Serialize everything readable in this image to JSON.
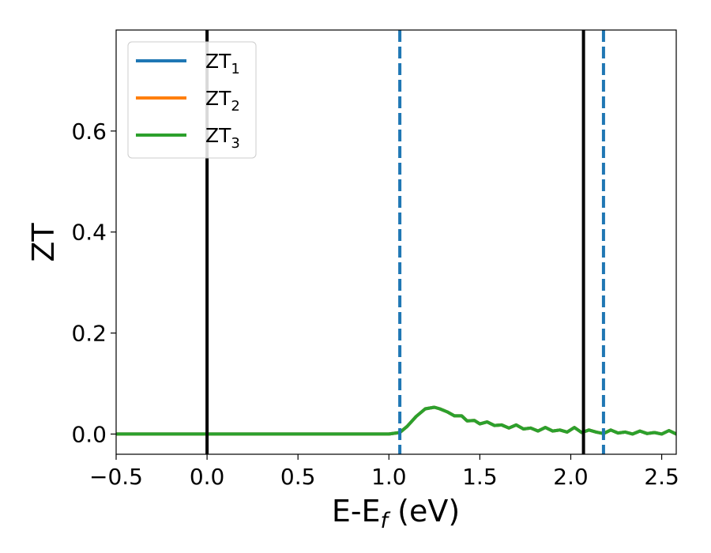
{
  "chart_data": {
    "type": "line",
    "title": "",
    "xlabel": "E-E",
    "xlabel_sub": "f",
    "xlabel_unit": " (eV)",
    "ylabel": "ZT",
    "xlim": [
      -0.5,
      2.58
    ],
    "ylim": [
      -0.04,
      0.8
    ],
    "xticks": [
      -0.5,
      0.0,
      0.5,
      1.0,
      1.5,
      2.0,
      2.5
    ],
    "xtick_labels": [
      "−0.5",
      "0.0",
      "0.5",
      "1.0",
      "1.5",
      "2.0",
      "2.5"
    ],
    "yticks": [
      0.0,
      0.2,
      0.4,
      0.6
    ],
    "ytick_labels": [
      "0.0",
      "0.2",
      "0.4",
      "0.6"
    ],
    "grid": false,
    "legend_position": "top-left",
    "vertical_lines": [
      {
        "x": 0.0,
        "style": "solid",
        "color": "#000000"
      },
      {
        "x": 2.07,
        "style": "solid",
        "color": "#000000"
      },
      {
        "x": 1.06,
        "style": "dashed",
        "color": "#1f77b4"
      },
      {
        "x": 2.18,
        "style": "dashed",
        "color": "#1f77b4"
      }
    ],
    "series": [
      {
        "name": "ZT",
        "name_sub": "1",
        "color": "#1f77b4",
        "x": [
          -0.5,
          1.0,
          1.06,
          1.1,
          1.15,
          1.2,
          1.25,
          1.28,
          1.32,
          1.36,
          1.4,
          1.43,
          1.47,
          1.5,
          1.54,
          1.58,
          1.62,
          1.66,
          1.7,
          1.74,
          1.78,
          1.82,
          1.86,
          1.9,
          1.94,
          1.98,
          2.02,
          2.06,
          2.1,
          2.14,
          2.18,
          2.22,
          2.26,
          2.3,
          2.34,
          2.38,
          2.42,
          2.46,
          2.5,
          2.54,
          2.58
        ],
        "y": [
          0.0,
          0.0,
          0.003,
          0.015,
          0.035,
          0.05,
          0.053,
          0.05,
          0.044,
          0.036,
          0.036,
          0.026,
          0.027,
          0.02,
          0.024,
          0.017,
          0.018,
          0.012,
          0.018,
          0.01,
          0.012,
          0.006,
          0.013,
          0.006,
          0.008,
          0.004,
          0.013,
          0.003,
          0.008,
          0.004,
          0.001,
          0.008,
          0.002,
          0.004,
          0.0,
          0.006,
          0.001,
          0.003,
          0.0,
          0.007,
          0.0
        ]
      },
      {
        "name": "ZT",
        "name_sub": "2",
        "color": "#ff7f0e",
        "x": [
          -0.5,
          1.0,
          1.06,
          1.1,
          1.15,
          1.2,
          1.25,
          1.28,
          1.32,
          1.36,
          1.4,
          1.43,
          1.47,
          1.5,
          1.54,
          1.58,
          1.62,
          1.66,
          1.7,
          1.74,
          1.78,
          1.82,
          1.86,
          1.9,
          1.94,
          1.98,
          2.02,
          2.06,
          2.1,
          2.14,
          2.18,
          2.22,
          2.26,
          2.3,
          2.34,
          2.38,
          2.42,
          2.46,
          2.5,
          2.54,
          2.58
        ],
        "y": [
          0.0,
          0.0,
          0.003,
          0.015,
          0.035,
          0.05,
          0.053,
          0.05,
          0.044,
          0.036,
          0.036,
          0.026,
          0.027,
          0.02,
          0.024,
          0.017,
          0.018,
          0.012,
          0.018,
          0.01,
          0.012,
          0.006,
          0.013,
          0.006,
          0.008,
          0.004,
          0.013,
          0.003,
          0.008,
          0.004,
          0.001,
          0.008,
          0.002,
          0.004,
          0.0,
          0.006,
          0.001,
          0.003,
          0.0,
          0.007,
          0.0
        ]
      },
      {
        "name": "ZT",
        "name_sub": "3",
        "color": "#2ca02c",
        "x": [
          -0.5,
          1.0,
          1.06,
          1.1,
          1.15,
          1.2,
          1.25,
          1.28,
          1.32,
          1.36,
          1.4,
          1.43,
          1.47,
          1.5,
          1.54,
          1.58,
          1.62,
          1.66,
          1.7,
          1.74,
          1.78,
          1.82,
          1.86,
          1.9,
          1.94,
          1.98,
          2.02,
          2.06,
          2.1,
          2.14,
          2.18,
          2.22,
          2.26,
          2.3,
          2.34,
          2.38,
          2.42,
          2.46,
          2.5,
          2.54,
          2.58
        ],
        "y": [
          0.0,
          0.0,
          0.003,
          0.015,
          0.035,
          0.05,
          0.053,
          0.05,
          0.044,
          0.036,
          0.036,
          0.026,
          0.027,
          0.02,
          0.024,
          0.017,
          0.018,
          0.012,
          0.018,
          0.01,
          0.012,
          0.006,
          0.013,
          0.006,
          0.008,
          0.004,
          0.013,
          0.003,
          0.008,
          0.004,
          0.001,
          0.008,
          0.002,
          0.004,
          0.0,
          0.006,
          0.001,
          0.003,
          0.0,
          0.007,
          0.0
        ]
      }
    ]
  }
}
